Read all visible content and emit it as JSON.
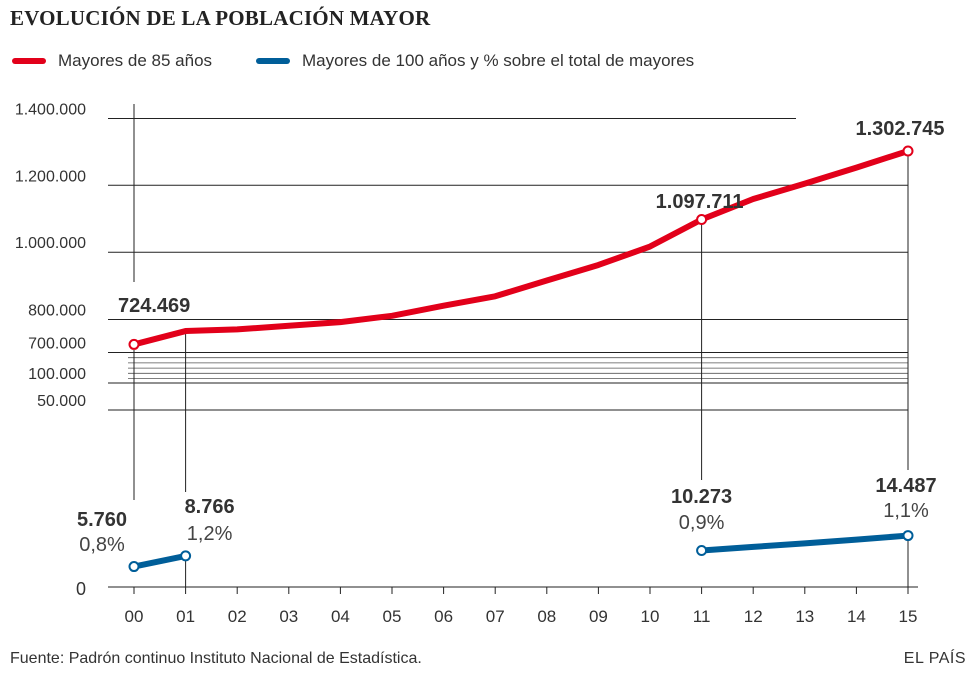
{
  "header": {
    "title": "EVOLUCIÓN DE LA POBLACIÓN MAYOR"
  },
  "legend": [
    {
      "label": "Mayores de 85 años",
      "color": "#e2001a"
    },
    {
      "label": "Mayores de 100 años y % sobre el total de mayores",
      "color": "#005e99"
    }
  ],
  "footer": {
    "source": "Fuente: Padrón continuo Instituto Nacional de Estadística.",
    "brand": "EL PAÍS"
  },
  "chart_data": {
    "type": "line",
    "title": "EVOLUCIÓN DE LA POBLACIÓN MAYOR",
    "categories": [
      "00",
      "01",
      "02",
      "03",
      "04",
      "05",
      "06",
      "07",
      "08",
      "09",
      "10",
      "11",
      "12",
      "13",
      "14",
      "15"
    ],
    "upper_axis": {
      "ticks": [
        {
          "value": 700000,
          "label": "700.000"
        },
        {
          "value": 800000,
          "label": "800.000"
        },
        {
          "value": 1000000,
          "label": "1.000.000"
        },
        {
          "value": 1200000,
          "label": "1.200.000"
        },
        {
          "value": 1400000,
          "label": "1.400.000"
        }
      ],
      "ylim": [
        700000,
        1400000
      ]
    },
    "lower_axis": {
      "ticks": [
        {
          "value": 0,
          "label": "0"
        },
        {
          "value": 50000,
          "label": "50.000"
        },
        {
          "value": 100000,
          "label": "100.000"
        }
      ]
    },
    "series": [
      {
        "name": "Mayores de 85 años",
        "color": "#e2001a",
        "values": [
          724469,
          765000,
          770000,
          781000,
          792000,
          811000,
          841000,
          869000,
          916000,
          962000,
          1017000,
          1097711,
          1159000,
          1205000,
          1253000,
          1302745
        ],
        "labels": [
          {
            "index": 0,
            "text": "724.469"
          },
          {
            "index": 11,
            "text": "1.097.711"
          },
          {
            "index": 15,
            "text": "1.302.745"
          }
        ]
      },
      {
        "name": "Mayores de 100 años",
        "color": "#005e99",
        "segments": [
          {
            "x": [
              "00",
              "01"
            ],
            "values": [
              5760,
              8766
            ]
          },
          {
            "x": [
              "11",
              "12",
              "13",
              "14",
              "15"
            ],
            "values": [
              10273,
              11300,
              12300,
              13350,
              14487
            ]
          }
        ],
        "labels": [
          {
            "x": "00",
            "value": "5.760",
            "percent": "0,8%"
          },
          {
            "x": "01",
            "value": "8.766",
            "percent": "1,2%"
          },
          {
            "x": "11",
            "value": "10.273",
            "percent": "0,9%"
          },
          {
            "x": "15",
            "value": "14.487",
            "percent": "1,1%"
          }
        ]
      }
    ]
  }
}
